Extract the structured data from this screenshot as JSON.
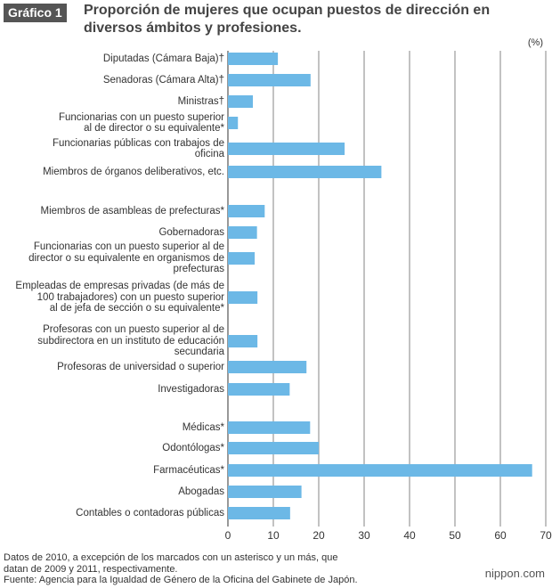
{
  "badge": "Gráfico 1",
  "title": "Proporción de mujeres que ocupan puestos de dirección en diversos ámbitos y profesiones.",
  "chart_data": {
    "type": "bar",
    "orientation": "horizontal",
    "unit_label": "(%)",
    "xlim": [
      0,
      70
    ],
    "xticks": [
      0,
      10,
      20,
      30,
      40,
      50,
      60,
      70
    ],
    "grid": true,
    "bar_color": "#6cb8e6",
    "categories": [
      "Diputadas (Cámara Baja)†",
      "Senadoras (Cámara Alta)†",
      "Ministras†",
      "Funcionarias con un puesto superior al de director o su equivalente*",
      "Funcionarias públicas con trabajos de oficina",
      "Miembros de órganos deliberativos, etc.",
      "Miembros de asambleas de prefecturas*",
      "Gobernadoras",
      "Funcionarias con un puesto superior al de director o su equivalente en organismos de prefecturas",
      "Empleadas de empresas privadas (de más de 100 trabajadores) con un puesto superior al de jefa de sección o su equivalente*",
      "Profesoras con un puesto superior al de subdirectora en un instituto de educación secundaria",
      "Profesoras de universidad o superior",
      "Investigadoras",
      "Médicas*",
      "Odontólogas*",
      "Farmacéuticas*",
      "Abogadas",
      "Contables o contadoras públicas"
    ],
    "label_lines": [
      [
        "Diputadas (Cámara Baja)†"
      ],
      [
        "Senadoras (Cámara Alta)†"
      ],
      [
        "Ministras†"
      ],
      [
        "Funcionarias con un puesto superior",
        "al de director o su equivalente*"
      ],
      [
        "Funcionarias públicas con trabajos de",
        "oficina"
      ],
      [
        "Miembros de órganos deliberativos, etc."
      ],
      [
        "Miembros de asambleas de prefecturas*"
      ],
      [
        "Gobernadoras"
      ],
      [
        "Funcionarias con un puesto superior al de",
        "director o su equivalente en organismos de",
        "prefecturas"
      ],
      [
        "Empleadas de empresas privadas (de más de",
        "100 trabajadores) con un puesto superior",
        "al de jefa de sección o su equivalente*"
      ],
      [
        "Profesoras con un puesto superior al de",
        "subdirectora en un instituto de educación",
        "secundaria"
      ],
      [
        "Profesoras de universidad o superior"
      ],
      [
        "Investigadoras"
      ],
      [
        "Médicas*"
      ],
      [
        "Odontólogas*"
      ],
      [
        "Farmacéuticas*"
      ],
      [
        "Abogadas"
      ],
      [
        "Contables o contadoras públicas"
      ]
    ],
    "values": [
      11.0,
      18.2,
      5.5,
      2.2,
      25.7,
      33.8,
      8.1,
      6.4,
      5.9,
      6.5,
      6.5,
      17.3,
      13.6,
      18.1,
      20.0,
      67.0,
      16.2,
      13.7
    ]
  },
  "footer": {
    "line1": "Datos de 2010, a excepción de los marcados con un asterisco y un más, que",
    "line2": "datan de 2009 y 2011, respectivamente.",
    "line3": "Fuente: Agencia para la Igualdad de Género de la Oficina del Gabinete de Japón."
  },
  "brand": {
    "left": "nippon",
    "dot": ".",
    "right": "com"
  }
}
